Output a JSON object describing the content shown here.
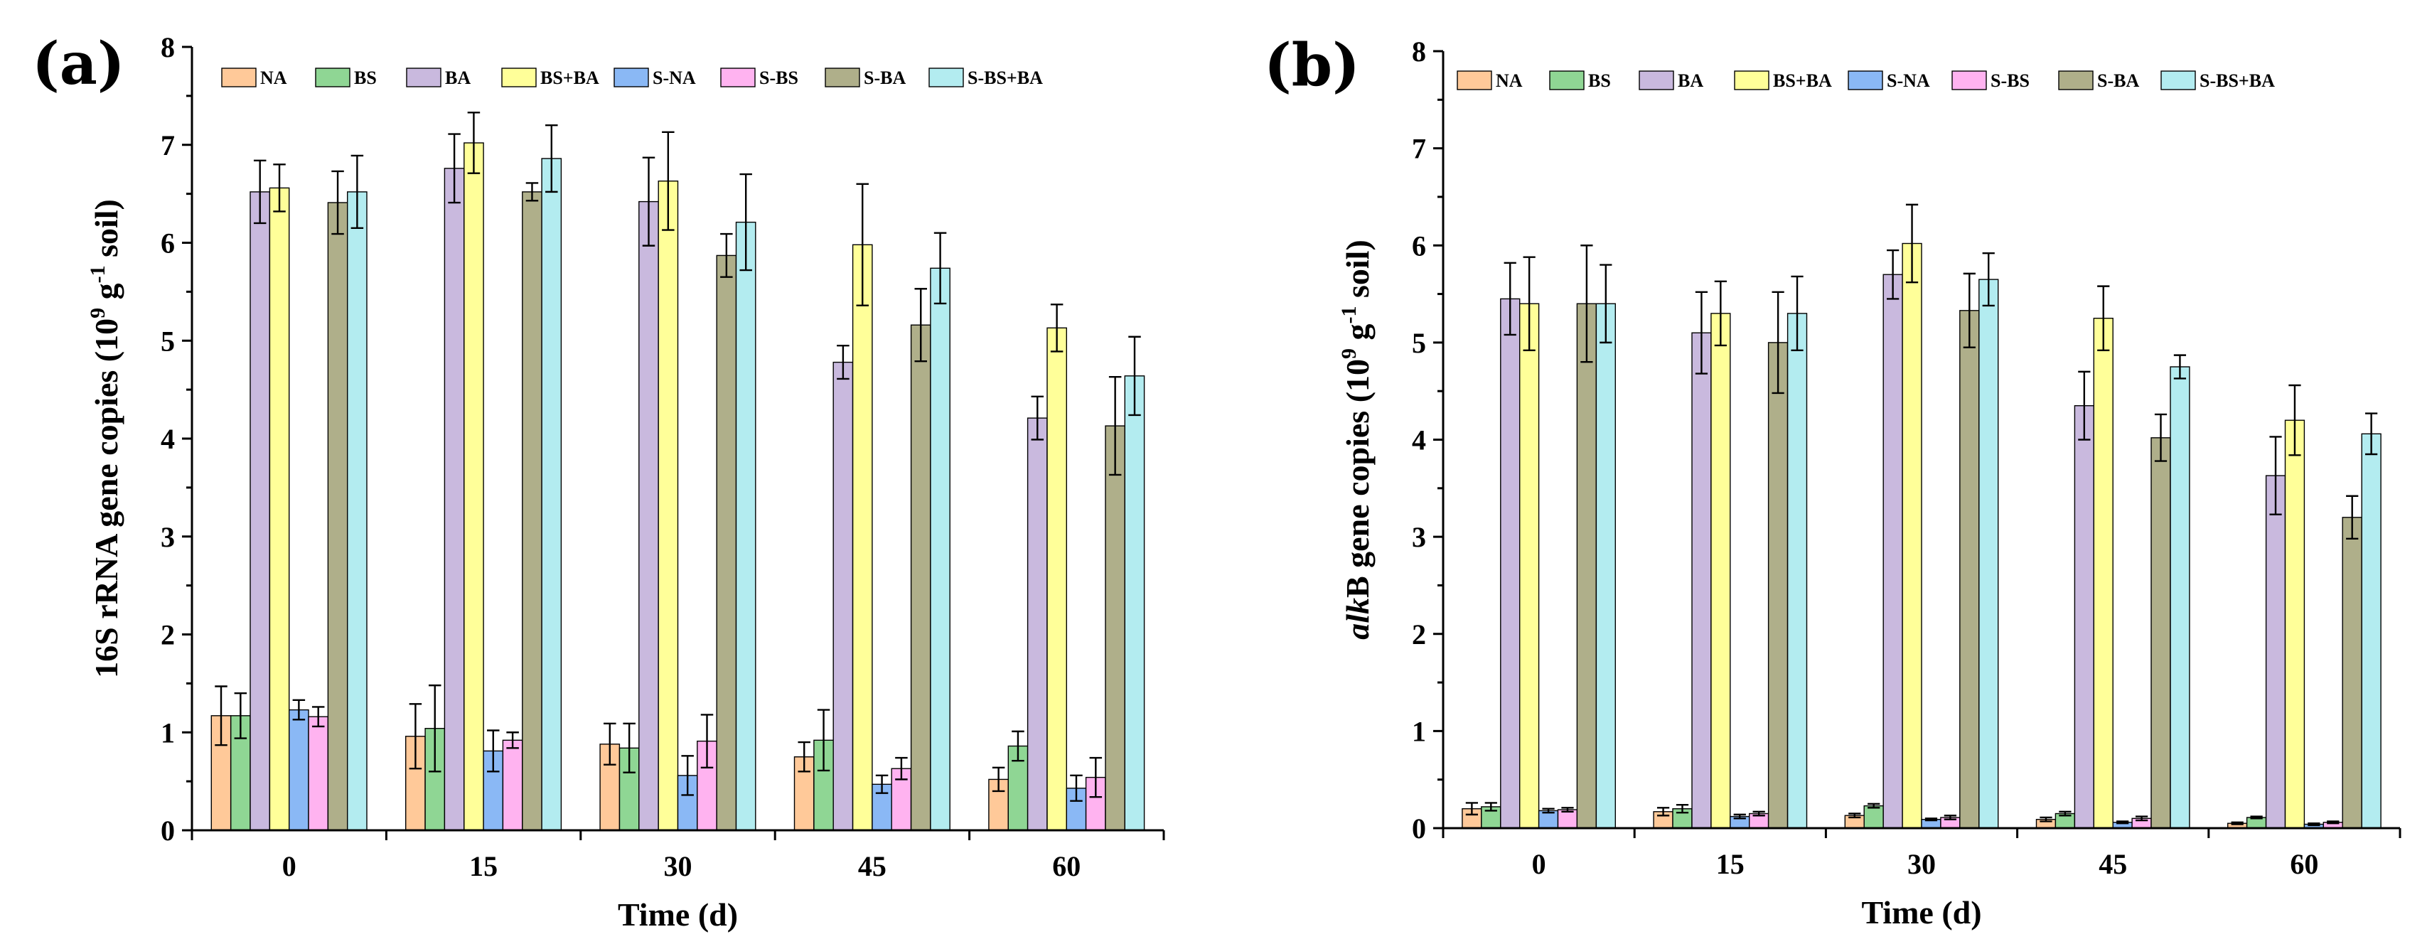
{
  "chart_data": [
    {
      "type": "bar",
      "panel_label": "(a)",
      "title": "",
      "xlabel": "Time (d)",
      "ylabel": {
        "prefix": "16S rRNA gene copies (10",
        "sup1": "9",
        "mid": " g",
        "sup2": "-1",
        "suffix": " soil)"
      },
      "ylim": [
        0,
        8
      ],
      "yticks": [
        "0",
        "1",
        "2",
        "3",
        "4",
        "5",
        "6",
        "7",
        "8"
      ],
      "categories": [
        "0",
        "15",
        "30",
        "45",
        "60"
      ],
      "series": [
        {
          "name": "NA",
          "color": "#FFC999",
          "values": [
            1.17,
            0.96,
            0.88,
            0.75,
            0.52
          ],
          "errors": [
            0.3,
            0.33,
            0.21,
            0.15,
            0.12
          ]
        },
        {
          "name": "BS",
          "color": "#8FD694",
          "values": [
            1.17,
            1.04,
            0.84,
            0.92,
            0.86
          ],
          "errors": [
            0.23,
            0.44,
            0.25,
            0.31,
            0.15
          ]
        },
        {
          "name": "BA",
          "color": "#C9B9DE",
          "values": [
            6.52,
            6.76,
            6.42,
            4.78,
            4.21
          ],
          "errors": [
            0.32,
            0.35,
            0.45,
            0.17,
            0.22
          ]
        },
        {
          "name": "BS+BA",
          "color": "#FFFF99",
          "values": [
            6.56,
            7.02,
            6.63,
            5.98,
            5.13
          ],
          "errors": [
            0.24,
            0.31,
            0.5,
            0.62,
            0.24
          ]
        },
        {
          "name": "S-NA",
          "color": "#8AB8F5",
          "values": [
            1.23,
            0.81,
            0.56,
            0.47,
            0.43
          ],
          "errors": [
            0.1,
            0.21,
            0.2,
            0.09,
            0.13
          ]
        },
        {
          "name": "S-BS",
          "color": "#FFB3F0",
          "values": [
            1.16,
            0.92,
            0.91,
            0.63,
            0.54
          ],
          "errors": [
            0.1,
            0.08,
            0.27,
            0.11,
            0.2
          ]
        },
        {
          "name": "S-BA",
          "color": "#AFAF8A",
          "values": [
            6.41,
            6.52,
            5.87,
            5.16,
            4.13
          ],
          "errors": [
            0.32,
            0.09,
            0.22,
            0.37,
            0.5
          ]
        },
        {
          "name": "S-BS+BA",
          "color": "#B3ECF0",
          "values": [
            6.52,
            6.86,
            6.21,
            5.74,
            4.64
          ],
          "errors": [
            0.37,
            0.34,
            0.49,
            0.36,
            0.4
          ]
        }
      ]
    },
    {
      "type": "bar",
      "panel_label": "(b)",
      "title": "",
      "xlabel": "Time (d)",
      "ylabel": {
        "italic": "alk",
        "prefix": "B gene copies (10",
        "sup1": "9",
        "mid": " g",
        "sup2": "-1",
        "suffix": " soil)"
      },
      "ylim": [
        0,
        8
      ],
      "yticks": [
        "0",
        "1",
        "2",
        "3",
        "4",
        "5",
        "6",
        "7",
        "8"
      ],
      "categories": [
        "0",
        "15",
        "30",
        "45",
        "60"
      ],
      "series": [
        {
          "name": "NA",
          "color": "#FFC999",
          "values": [
            0.2,
            0.17,
            0.13,
            0.09,
            0.05
          ],
          "errors": [
            0.06,
            0.04,
            0.02,
            0.02,
            0.01
          ]
        },
        {
          "name": "BS",
          "color": "#8FD694",
          "values": [
            0.22,
            0.2,
            0.23,
            0.15,
            0.11
          ],
          "errors": [
            0.04,
            0.04,
            0.02,
            0.02,
            0.01
          ]
        },
        {
          "name": "BA",
          "color": "#C9B9DE",
          "values": [
            5.45,
            5.1,
            5.7,
            4.35,
            3.63
          ],
          "errors": [
            0.37,
            0.42,
            0.25,
            0.35,
            0.4
          ]
        },
        {
          "name": "BS+BA",
          "color": "#FFFF99",
          "values": [
            5.4,
            5.3,
            6.02,
            5.25,
            4.2
          ],
          "errors": [
            0.48,
            0.33,
            0.4,
            0.33,
            0.36
          ]
        },
        {
          "name": "S-NA",
          "color": "#8AB8F5",
          "values": [
            0.18,
            0.12,
            0.09,
            0.06,
            0.04
          ],
          "errors": [
            0.02,
            0.02,
            0.01,
            0.01,
            0.01
          ]
        },
        {
          "name": "S-BS",
          "color": "#FFB3F0",
          "values": [
            0.19,
            0.15,
            0.11,
            0.1,
            0.06
          ],
          "errors": [
            0.02,
            0.02,
            0.02,
            0.02,
            0.01
          ]
        },
        {
          "name": "S-BA",
          "color": "#AFAF8A",
          "values": [
            5.4,
            5.0,
            5.33,
            4.02,
            3.2
          ],
          "errors": [
            0.6,
            0.52,
            0.38,
            0.24,
            0.22
          ]
        },
        {
          "name": "S-BS+BA",
          "color": "#B3ECF0",
          "values": [
            5.4,
            5.3,
            5.65,
            4.75,
            4.06
          ],
          "errors": [
            0.4,
            0.38,
            0.27,
            0.12,
            0.21
          ]
        }
      ]
    }
  ]
}
